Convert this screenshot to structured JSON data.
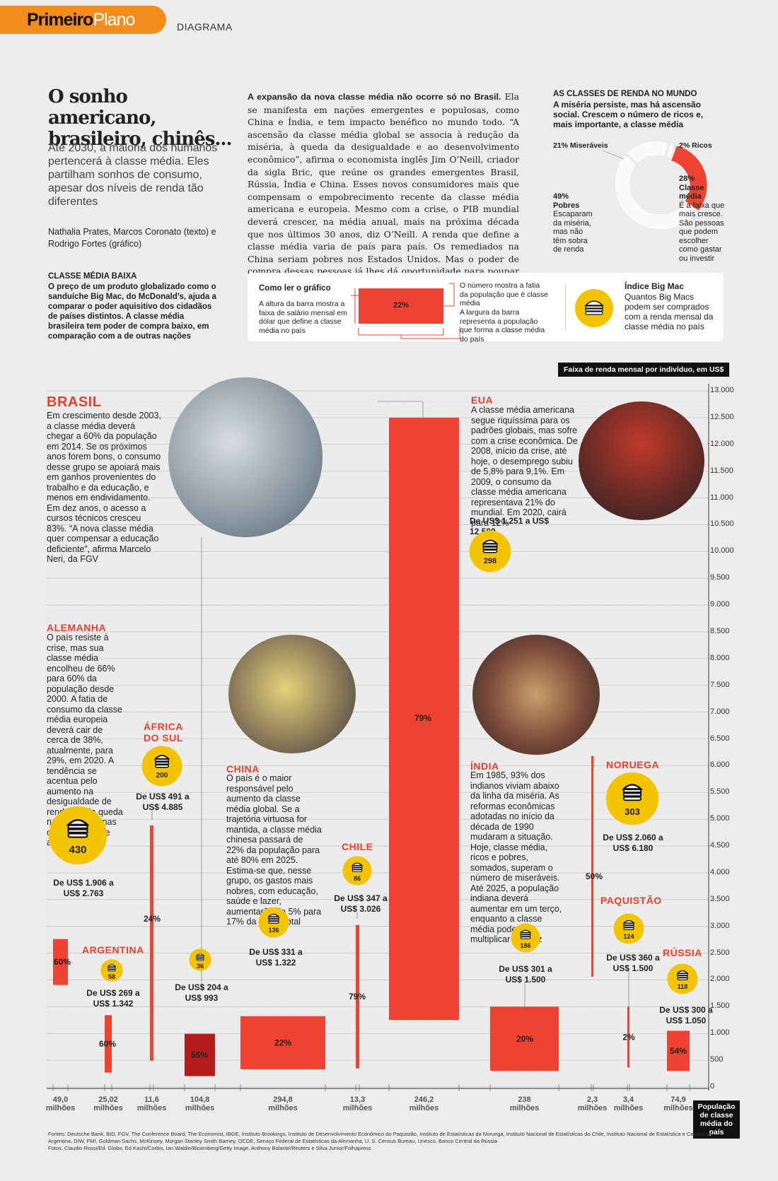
{
  "header": {
    "brand_bold": "Primeiro",
    "brand_light": "Plano",
    "section": "DIAGRAMA"
  },
  "article": {
    "title": "O sonho americano, brasileiro, chinês...",
    "subtitle": "Até 2030, a maioria dos humanos pertencerá à classe média. Eles partilham sonhos de consumo, apesar dos níveis de renda tão diferentes",
    "credits": "Nathalia Prates, Marcos Coronato (texto) e Rodrigo Fortes (gráfico)",
    "intro_lead": "A expansão da nova classe média não ocorre só no Brasil.",
    "intro_body": "Ela se manifesta em nações emergentes e populosas, como China e Índia, e tem impacto benéfico no mundo todo. “A ascensão da classe média global se associa à redução da miséria, à queda da desigualdade e ao desenvolvimento econômico”, afirma o economista inglês Jim O’Neill, criador da sigla Bric, que reúne os grandes emergentes Brasil, Rússia, Índia e China. Esses novos consumidores mais que compensam o empobrecimento recente da classe média americana e europeia. Mesmo com a crise, o PIB mundial deverá crescer, na média anual, mais na próxima década que nos últimos 30 anos, diz O’Neill. A renda que define a classe média varia de país para país. Os remediados na China seriam pobres nos Estados Unidos. Mas o poder de compra dessas pessoas já lhes dá oportunidade para poupar e realizar antigos sonhos."
  },
  "world_classes": {
    "title": "AS CLASSES DE RENDA NO MUNDO",
    "subtitle": "A miséria persiste, mas há ascensão social. Crescem o número de ricos e, mais importante, a classe média",
    "miseraveis_label": "21% Miseráveis",
    "ricos_label": "2% Ricos",
    "classe_media_pct": "28%",
    "classe_media_label": "Classe média",
    "classe_media_text": "É a faixa que mais cresce. São pessoas que podem escolher como gastar ou investir",
    "pobres_pct": "49%",
    "pobres_label": "Pobres",
    "pobres_text": "Escaparam da miséria, mas não têm sobra de renda",
    "colors": {
      "miseraveis": "#ffffff",
      "ricos": "#ffffff",
      "classe_media": "#ee4333",
      "pobres": "#ffffff"
    }
  },
  "classe_media_baixa": {
    "title": "CLASSE MÉDIA BAIXA",
    "text": "O preço de um produto globalizado como o sanduíche Big Mac, do McDonald’s, ajuda a comparar o poder aquisitivo dos cidadãos de países distintos. A classe média brasileira tem poder de compra baixo, em comparação com a de outras nações"
  },
  "how_to_read": {
    "title": "Como ler o gráfico",
    "height_text": "A altura da barra mostra a faixa de salário mensal em dólar que define a classe média no país",
    "sample_pct": "22%",
    "number_text": "O número mostra a fatia da população que é classe média",
    "width_text": "A largura da barra representa a população que forma a classe média do país",
    "bigmac_title": "Índice Big Mac",
    "bigmac_text": "Quantos Big Macs podem ser comprados com a renda mensal da classe média no país"
  },
  "axis": {
    "title": "Faixa de renda mensal por indivíduo, em US$",
    "ticks": [
      "13.000",
      "12.500",
      "12.000",
      "11.500",
      "11.000",
      "10.500",
      "10.000",
      "9.500",
      "9.000",
      "8.500",
      "8.000",
      "7.500",
      "7.000",
      "6.500",
      "6.000",
      "5.500",
      "5.000",
      "4.500",
      "4.000",
      "3.500",
      "3.000",
      "2.500",
      "2.000",
      "1.500",
      "1.000",
      "500",
      "0"
    ],
    "population_title": "População de classe média do país"
  },
  "countries": {
    "brasil": {
      "name": "BRASIL",
      "text": "Em crescimento desde 2003, a classe média deverá chegar a 60% da população em 2014. Se os próximos anos forem bons, o consumo desse grupo se apoiará mais em ganhos provenientes do trabalho e da educação, e menos em endividamento. Em dez anos, o acesso a cursos técnicos cresceu 83%. “A nova classe média quer compensar a educação deficiente”, afirma Marcelo Neri, da FGV"
    },
    "eua": {
      "name": "EUA",
      "text": "A classe média americana segue riquíssima para os padrões globais, mas sofre com a crise econômica. De 2008, início da crise, até hoje, o desemprego subiu de 5,8% para 9,1%. Em 2009, o consumo da classe média americana representava 21% do mundial. Em 2020, cairá para 12%",
      "range": "De US$ 1.251 a US$ 12.500",
      "bigmac": "298"
    },
    "alemanha": {
      "name": "ALEMANHA",
      "text": "O país resiste à crise, mas sua classe média encolheu de 66% para 60% da população desde 2000. A fatia de consumo da classe média europeia deverá cair de cerca de 38%, atualmente, para 29%, em 2020. A tendência se acentua pelo aumento na desigualdade de renda e pela queda na natalidade nas classes média e alta",
      "bigmac": "430",
      "range": "De US$ 1.906 a US$ 2.763"
    },
    "africa": {
      "name": "ÁFRICA DO SUL",
      "bigmac": "200",
      "range": "De US$ 491 a US$ 4.885"
    },
    "argentina": {
      "name": "ARGENTINA",
      "bigmac": "58",
      "range": "De US$ 269 a US$ 1.342"
    },
    "brasil_bar": {
      "bigmac": "36",
      "range": "De US$ 204 a US$ 993"
    },
    "china": {
      "name": "CHINA",
      "text": "O país é o maior responsável pelo aumento da classe média global. Se a trajetória virtuosa for mantida, a classe média chinesa passará de 22% da população para até 80% em 2025. Estima-se que, nesse grupo, os gastos mais nobres, com educação, saúde e lazer, aumentarão de 5% para 17% da renda total",
      "bigmac": "136",
      "range": "De US$ 331 a US$ 1.322"
    },
    "chile": {
      "name": "CHILE",
      "bigmac": "86",
      "range": "De US$ 347 a US$ 3.026"
    },
    "india": {
      "name": "ÍNDIA",
      "text": "Em 1985, 93% dos indianos viviam abaixo da linha da miséria. As reformas econômicas adotadas no início da década de 1990 mudaram a situação. Hoje, classe média, ricos e pobres, somados, superam o número de miseráveis. Até 2025, a população indiana deverá aumentar em um terço, enquanto a classe média poderá se multiplicar por dez",
      "bigmac": "186",
      "range": "De US$ 301 a US$ 1.500"
    },
    "noruega": {
      "name": "NORUEGA",
      "bigmac": "303",
      "range": "De US$ 2.060 a US$ 6.180"
    },
    "paquistao": {
      "name": "PAQUISTÃO",
      "bigmac": "124",
      "range": "De US$ 360 a US$ 1.500"
    },
    "russia": {
      "name": "RÚSSIA",
      "bigmac": "118",
      "range": "De US$ 300 a US$ 1.050"
    }
  },
  "chart_data": {
    "type": "bar",
    "title": "",
    "ylabel": "Faixa de renda mensal por indivíduo, em US$",
    "xlabel": "População de classe média do país",
    "ylim": [
      0,
      13000
    ],
    "bars": [
      {
        "country": "Alemanha",
        "low": 1906,
        "high": 2763,
        "pct": "60%",
        "population": "49,0 milhões",
        "color": "#ee4333"
      },
      {
        "country": "Argentina",
        "low": 269,
        "high": 1342,
        "pct": "60%",
        "population": "25,02 milhões",
        "color": "#ee4333"
      },
      {
        "country": "África do Sul",
        "low": 491,
        "high": 4885,
        "pct": "24%",
        "population": "11,6 milhões",
        "color": "#ee4333"
      },
      {
        "country": "Brasil",
        "low": 204,
        "high": 993,
        "pct": "55%",
        "population": "104,8 milhões",
        "color": "#b51b1b"
      },
      {
        "country": "China",
        "low": 331,
        "high": 1322,
        "pct": "22%",
        "population": "294,8 milhões",
        "color": "#ee4333"
      },
      {
        "country": "Chile",
        "low": 347,
        "high": 3026,
        "pct": "79%",
        "population": "13,3 milhões",
        "color": "#ee4333"
      },
      {
        "country": "EUA",
        "low": 1251,
        "high": 12500,
        "pct": "79%",
        "population": "246,2 milhões",
        "color": "#ee4333"
      },
      {
        "country": "Índia",
        "low": 301,
        "high": 1500,
        "pct": "20%",
        "population": "238 milhões",
        "color": "#ee4333"
      },
      {
        "country": "Noruega",
        "low": 2060,
        "high": 6180,
        "pct": "50%",
        "population": "2,3 milhões",
        "color": "#ee4333"
      },
      {
        "country": "Paquistão",
        "low": 360,
        "high": 1500,
        "pct": "2%",
        "population": "3,4 milhões",
        "color": "#ee4333"
      },
      {
        "country": "Rússia",
        "low": 300,
        "high": 1050,
        "pct": "54%",
        "population": "74,9 milhões",
        "color": "#ee4333"
      }
    ]
  },
  "sources": {
    "fontes": "Fontes: Deutsche Bank, BID, FGV, The Conference Board, The Economist, IBGE, Instituto Brookings, Instituto de Desenvolvimento Econômico do Paquistão, Instituto de Estatísticas da Noruega, Instituto Nacional de Estatísticas do Chile, Instituto Nacional de Estatística e Censos da Argentina, DIW, FMI, Goldman Sachs, McKinsey, Morgan Stanley Smith Barney, OCDE, Serviço Federal de Estatísticas da Alemanha, U. S. Census Bureau, Unesco, Banco Central da Rússia",
    "fotos": "Fotos: Claudio Rossi/Ed. Globo, Ed Kashi/Corbis, Ian Waldie/Bloomberg/Getty Image, Anthony Bolante/Reuters e Silva Junior/Folhapress"
  }
}
